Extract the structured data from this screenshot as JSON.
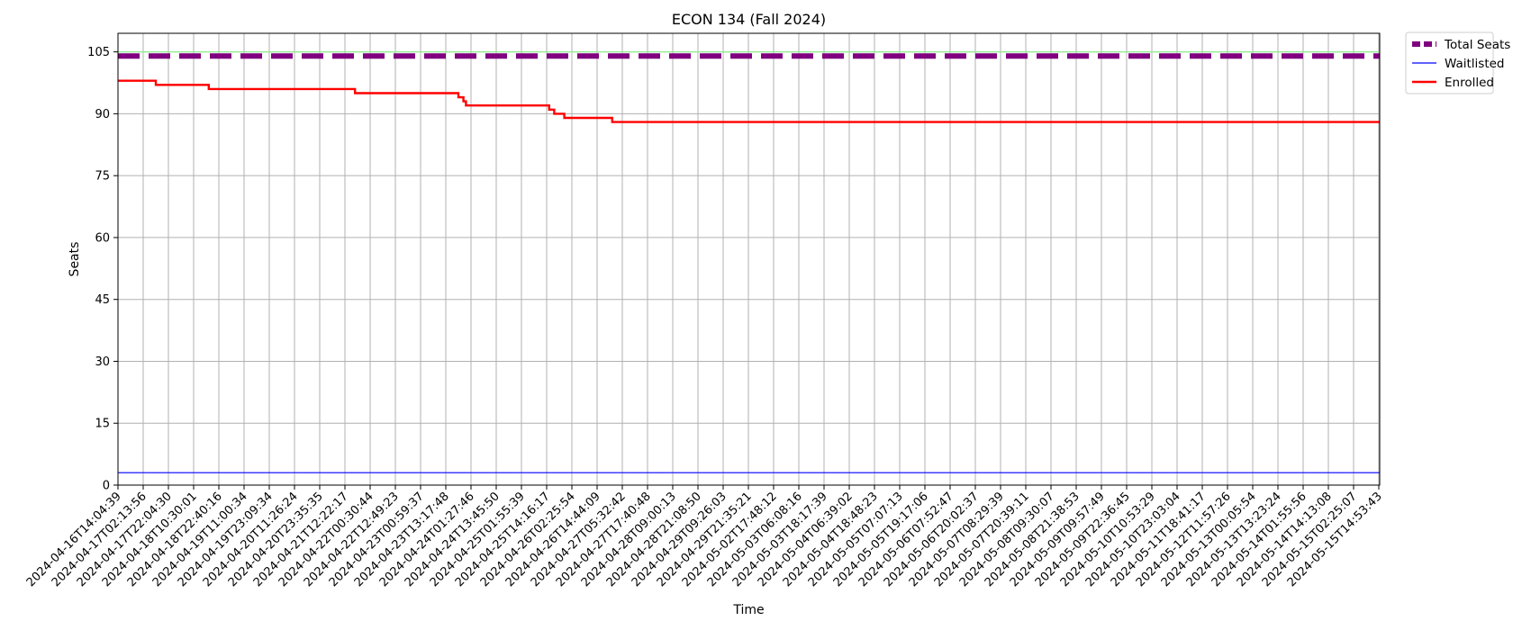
{
  "chart_data": {
    "type": "line",
    "title": "ECON 134 (Fall 2024)",
    "xlabel": "Time",
    "ylabel": "Seats",
    "ylim": [
      0,
      109.5
    ],
    "yticks": [
      0,
      15,
      30,
      45,
      60,
      75,
      90,
      105
    ],
    "grid": true,
    "legend_position": "outside-top-right",
    "categories": [
      "2024-04-16T14:04:39",
      "2024-04-17T02:13:56",
      "2024-04-17T22:04:30",
      "2024-04-18T10:30:01",
      "2024-04-18T22:40:16",
      "2024-04-19T11:00:34",
      "2024-04-19T23:09:34",
      "2024-04-20T11:26:24",
      "2024-04-20T23:35:35",
      "2024-04-21T12:22:17",
      "2024-04-22T00:30:44",
      "2024-04-22T12:49:23",
      "2024-04-23T00:59:37",
      "2024-04-23T13:17:48",
      "2024-04-24T01:27:46",
      "2024-04-24T13:45:50",
      "2024-04-25T01:55:39",
      "2024-04-25T14:16:17",
      "2024-04-26T02:25:54",
      "2024-04-26T14:44:09",
      "2024-04-27T05:32:42",
      "2024-04-27T17:40:48",
      "2024-04-28T09:00:13",
      "2024-04-28T21:08:50",
      "2024-04-29T09:26:03",
      "2024-04-29T21:35:21",
      "2024-05-02T17:48:12",
      "2024-05-03T06:08:16",
      "2024-05-03T18:17:39",
      "2024-05-04T06:39:02",
      "2024-05-04T18:48:23",
      "2024-05-05T07:07:13",
      "2024-05-05T19:17:06",
      "2024-05-06T07:52:47",
      "2024-05-06T20:02:37",
      "2024-05-07T08:29:39",
      "2024-05-07T20:39:11",
      "2024-05-08T09:30:07",
      "2024-05-08T21:38:53",
      "2024-05-09T09:57:49",
      "2024-05-09T22:36:45",
      "2024-05-10T10:53:29",
      "2024-05-10T23:03:04",
      "2024-05-11T18:41:17",
      "2024-05-12T11:57:26",
      "2024-05-13T00:05:54",
      "2024-05-13T13:23:24",
      "2024-05-14T01:55:56",
      "2024-05-14T14:13:08",
      "2024-05-15T02:25:07",
      "2024-05-15T14:53:43"
    ],
    "series": [
      {
        "name": "Total Seats",
        "color": "#800080",
        "style": "dashed",
        "points": [
          [
            0,
            104
          ],
          [
            50.05,
            104
          ]
        ]
      },
      {
        "name": "Waitlisted",
        "color": "#0000ff",
        "style": "solid",
        "points": [
          [
            0,
            3
          ],
          [
            50.05,
            3
          ]
        ]
      },
      {
        "name": "Enrolled",
        "color": "#ff0000",
        "style": "solid",
        "points": [
          [
            0,
            98
          ],
          [
            1.5,
            98
          ],
          [
            1.5,
            97
          ],
          [
            3.6,
            97
          ],
          [
            3.6,
            96
          ],
          [
            9.4,
            96
          ],
          [
            9.4,
            95
          ],
          [
            13.5,
            95
          ],
          [
            13.5,
            94
          ],
          [
            13.7,
            94
          ],
          [
            13.7,
            93
          ],
          [
            13.8,
            93
          ],
          [
            13.8,
            92
          ],
          [
            17.1,
            92
          ],
          [
            17.1,
            91
          ],
          [
            17.3,
            91
          ],
          [
            17.3,
            90
          ],
          [
            17.7,
            90
          ],
          [
            17.7,
            89
          ],
          [
            19.6,
            89
          ],
          [
            19.6,
            88
          ],
          [
            50.05,
            88
          ]
        ]
      }
    ],
    "reference_lines": [
      {
        "y": 105,
        "color": "#90ee90"
      }
    ]
  }
}
